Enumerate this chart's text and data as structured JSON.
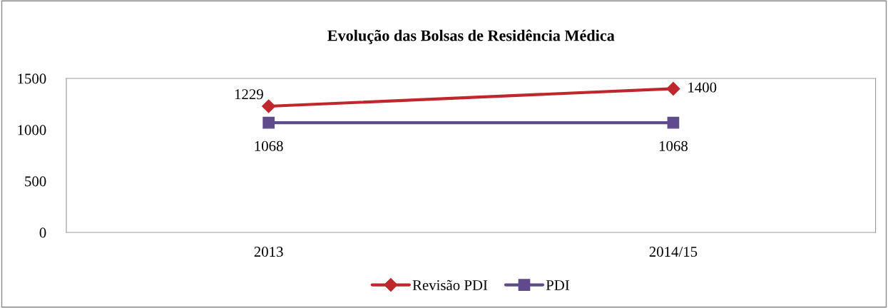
{
  "chart_data": {
    "type": "line",
    "title": "Evolução das Bolsas de Residência Médica",
    "categories": [
      "2013",
      "2014/15"
    ],
    "series": [
      {
        "name": "Revisão PDI",
        "color": "#c0272d",
        "values": [
          1229,
          1400
        ],
        "marker": "diamond"
      },
      {
        "name": "PDI",
        "color": "#5f4b8b",
        "values": [
          1068,
          1068
        ],
        "marker": "square"
      }
    ],
    "ylim": [
      0,
      1500
    ],
    "yticks": [
      0,
      500,
      1000,
      1500
    ],
    "grid": false,
    "legend": "bottom",
    "data_labels": true
  }
}
